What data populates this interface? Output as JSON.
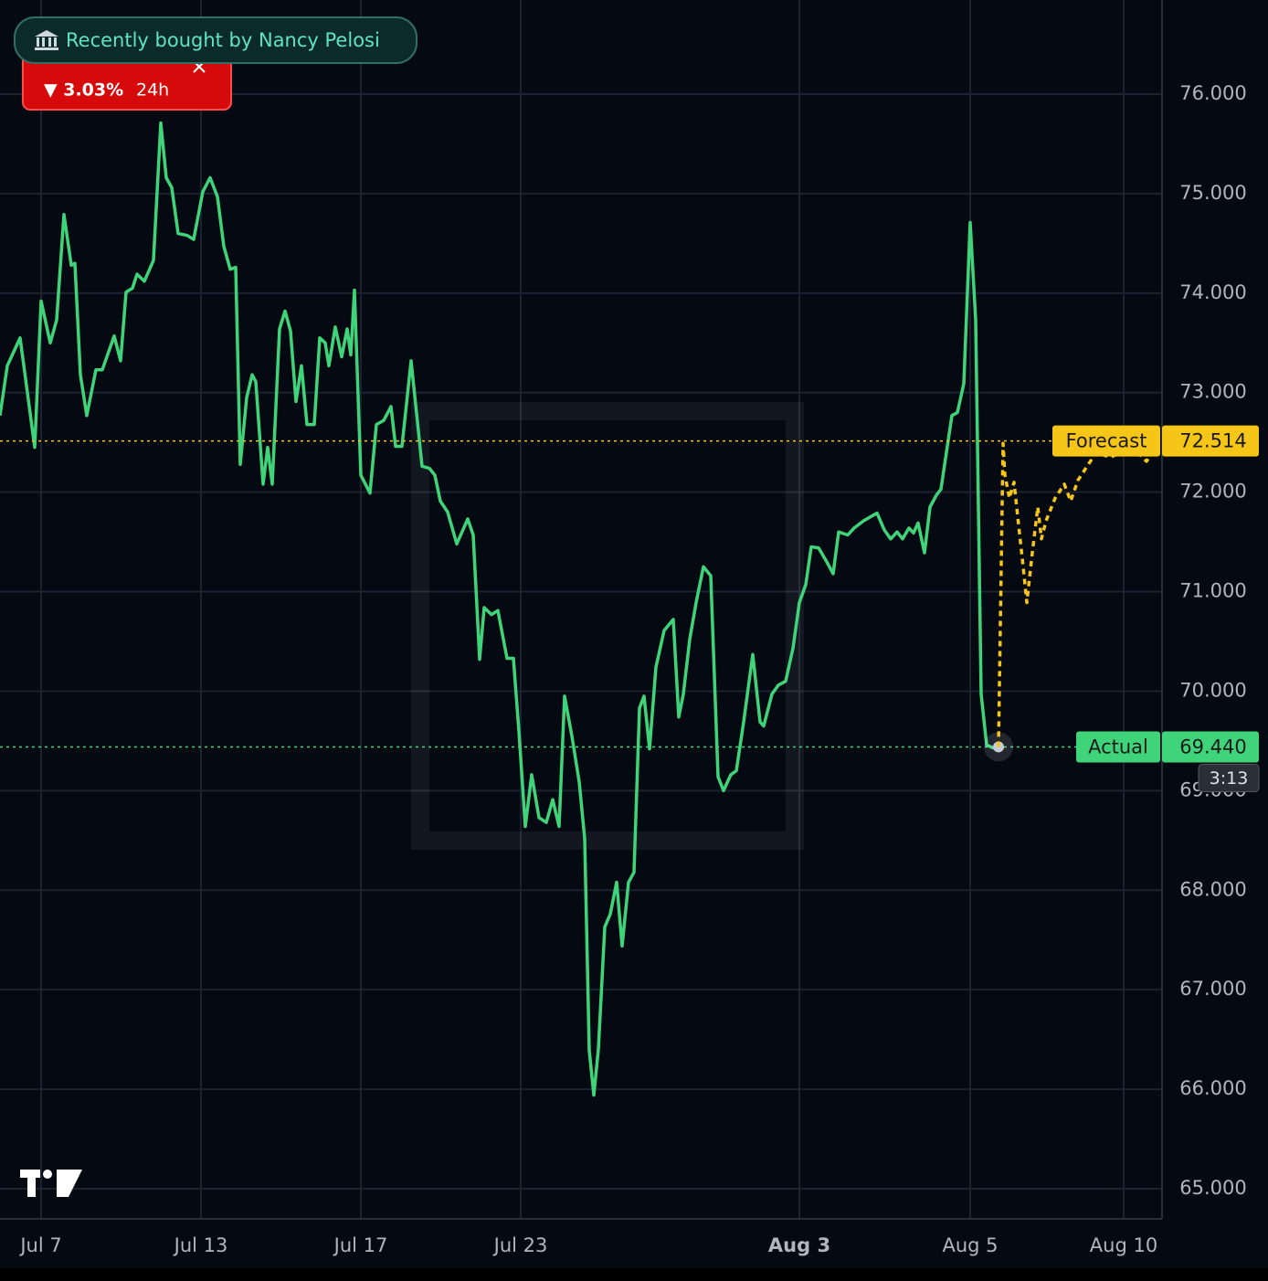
{
  "banner": "Recently bought by Nancy Pelosi",
  "change": {
    "text": "▼ 3.03%",
    "period": "24h"
  },
  "chart_data": {
    "type": "line",
    "xlim": [
      0,
      127.2
    ],
    "xticks": [
      {
        "value": 4.5,
        "label": "Jul 7"
      },
      {
        "value": 22,
        "label": "Jul 13"
      },
      {
        "value": 39.5,
        "label": "Jul 17"
      },
      {
        "value": 57,
        "label": "Jul 23"
      },
      {
        "value": 87.5,
        "label": "Aug 3",
        "bold": true
      },
      {
        "value": 106.2,
        "label": "Aug 5"
      },
      {
        "value": 123,
        "label": "Aug 10"
      }
    ],
    "ylim": [
      64.706,
      76.946
    ],
    "yticks": [
      {
        "value": 65,
        "label": "65.000"
      },
      {
        "value": 66,
        "label": "66.000"
      },
      {
        "value": 67,
        "label": "67.000"
      },
      {
        "value": 68,
        "label": "68.000"
      },
      {
        "value": 69,
        "label": "69.000"
      },
      {
        "value": 70,
        "label": "70.000"
      },
      {
        "value": 71,
        "label": "71.000"
      },
      {
        "value": 72,
        "label": "72.000"
      },
      {
        "value": 73,
        "label": "73.000"
      },
      {
        "value": 74,
        "label": "74.000"
      },
      {
        "value": 75,
        "label": "75.000"
      },
      {
        "value": 76,
        "label": "76.000"
      }
    ],
    "grid": true,
    "series": [
      {
        "name": "Actual",
        "color": "#3fd47a",
        "dash": false,
        "price_line": 69.44,
        "price_label": "69.440",
        "countdown": "3:13",
        "x": [
          0,
          0.8,
          2.2,
          3.8,
          4.5,
          5.5,
          6.2,
          7,
          7.8,
          8.2,
          8.8,
          9.5,
          10.5,
          11.2,
          12.5,
          13.2,
          13.8,
          14.5,
          15,
          15.8,
          16.8,
          17.6,
          18.2,
          18.8,
          19.5,
          20.5,
          21.2,
          22.2,
          23,
          23.8,
          24.5,
          25.2,
          25.8,
          26.3,
          27,
          27.6,
          28,
          28.8,
          29.3,
          29.8,
          30.6,
          31.2,
          31.8,
          32.4,
          33,
          33.6,
          34.4,
          35,
          35.6,
          36,
          36.7,
          37.4,
          38,
          38.4,
          38.8,
          39.5,
          40.5,
          41.2,
          42,
          42.8,
          43.3,
          44,
          45,
          46.2,
          47,
          47.6,
          48.2,
          49,
          50,
          51.2,
          51.8,
          52.5,
          53,
          53.8,
          54.5,
          55.5,
          56.2,
          56.8,
          57.5,
          58.2,
          59,
          59.8,
          60.5,
          61.2,
          61.8,
          62.6,
          63.4,
          64,
          64.5,
          65,
          65.5,
          66.2,
          66.8,
          67.5,
          68.1,
          68.8,
          69.4,
          70,
          70.5,
          71.1,
          71.8,
          72.7,
          73.7,
          74.3,
          74.8,
          75.5,
          76.2,
          77,
          77.8,
          78.6,
          79.2,
          80,
          80.6,
          81.4,
          82.4,
          83.2,
          83.6,
          84.5,
          85.2,
          86,
          86.8,
          87.5,
          88.2,
          88.8,
          89.6,
          90.5,
          91.2,
          91.8,
          92.8,
          93.5,
          94.5,
          96,
          96.8,
          97.5,
          98.2,
          98.8,
          99.5,
          100,
          100.5,
          101.2,
          101.8,
          102.5,
          103,
          104.2,
          104.8,
          105.5,
          106.2,
          106.8,
          107.4,
          108,
          108.7,
          109.3
        ],
        "values": [
          72.77,
          73.27,
          73.55,
          72.45,
          73.92,
          73.5,
          73.73,
          74.79,
          74.28,
          74.3,
          73.18,
          72.77,
          73.23,
          73.23,
          73.57,
          73.32,
          74.01,
          74.05,
          74.19,
          74.12,
          74.33,
          75.71,
          75.16,
          75.06,
          74.6,
          74.58,
          74.54,
          75.02,
          75.16,
          74.97,
          74.47,
          74.24,
          74.26,
          72.28,
          72.95,
          73.18,
          73.11,
          72.08,
          72.45,
          72.08,
          73.64,
          73.82,
          73.62,
          72.91,
          73.27,
          72.68,
          72.68,
          73.55,
          73.5,
          73.27,
          73.66,
          73.36,
          73.64,
          73.38,
          74.03,
          72.17,
          71.99,
          72.68,
          72.72,
          72.86,
          72.46,
          72.46,
          73.32,
          72.26,
          72.24,
          72.17,
          71.91,
          71.8,
          71.48,
          71.73,
          71.57,
          70.32,
          70.84,
          70.77,
          70.81,
          70.33,
          70.33,
          69.6,
          68.64,
          69.16,
          68.73,
          68.68,
          68.91,
          68.64,
          69.95,
          69.55,
          69.09,
          68.52,
          66.39,
          65.94,
          66.4,
          67.63,
          67.76,
          68.08,
          67.44,
          68.08,
          68.18,
          69.83,
          69.95,
          69.42,
          70.24,
          70.61,
          70.72,
          69.74,
          69.97,
          70.52,
          70.89,
          71.25,
          71.16,
          69.14,
          69,
          69.16,
          69.2,
          69.69,
          70.37,
          69.69,
          69.65,
          69.97,
          70.06,
          70.1,
          70.43,
          70.89,
          71.07,
          71.45,
          71.44,
          71.3,
          71.18,
          71.6,
          71.57,
          71.64,
          71.71,
          71.79,
          71.62,
          71.53,
          71.6,
          71.53,
          71.64,
          71.59,
          71.69,
          71.39,
          71.85,
          71.97,
          72.03,
          72.77,
          72.8,
          73.09,
          74.71,
          73.73,
          69.97,
          69.46,
          69.43,
          69.44
        ]
      },
      {
        "name": "Forecast",
        "color": "#f5c518",
        "dash": true,
        "price_line": 72.514,
        "x": [
          109.3,
          109.8,
          110,
          110.5,
          111,
          111.5,
          112,
          112.4,
          113,
          113.6,
          114,
          114.5,
          115.5,
          116.5,
          117.2,
          118,
          119,
          120,
          121.5,
          122.8,
          124,
          125.5,
          126.2
        ],
        "values": [
          69.44,
          72.49,
          72.17,
          71.94,
          72.1,
          71.67,
          71.25,
          70.89,
          71.39,
          71.85,
          71.53,
          71.71,
          71.94,
          72.08,
          71.91,
          72.12,
          72.26,
          72.4,
          72.35,
          72.4,
          72.45,
          72.31,
          72.4
        ]
      }
    ]
  }
}
